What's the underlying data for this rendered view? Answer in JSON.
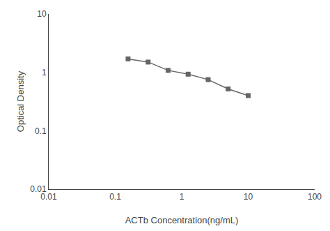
{
  "chart_data": {
    "type": "line",
    "xlabel": "ACTb Concentration(ng/mL)",
    "ylabel": "Optical Density",
    "x": [
      0.156,
      0.3125,
      0.625,
      1.25,
      2.5,
      5.0,
      10.0
    ],
    "values": [
      1.7,
      1.5,
      1.08,
      0.93,
      0.75,
      0.52,
      0.4
    ],
    "color": "#666666",
    "marker": "square",
    "log": true,
    "grid": false,
    "xlim": [
      0.01,
      100
    ],
    "ylim": [
      0.01,
      10
    ],
    "xticks": [
      0.01,
      0.1,
      1,
      10,
      100
    ],
    "yticks": [
      0.01,
      0.1,
      1,
      10
    ]
  }
}
